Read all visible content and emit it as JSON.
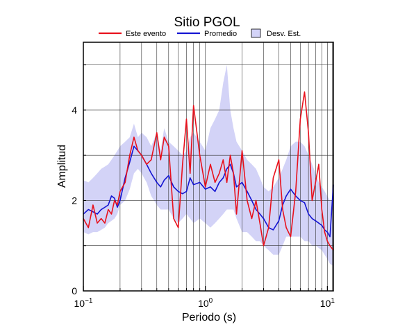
{
  "chart_data": {
    "type": "line",
    "title": "Sitio PGOL",
    "xlabel": "Periodo (s)",
    "ylabel": "Amplitud",
    "x_scale": "log",
    "xlim": [
      0.1,
      11.2
    ],
    "ylim": [
      0,
      5.5
    ],
    "grid": true,
    "legend_position": "top",
    "x_ticks": [
      {
        "value": 0.1,
        "base": "10",
        "exp": "−1"
      },
      {
        "value": 1,
        "base": "10",
        "exp": "0"
      },
      {
        "value": 10,
        "base": "10",
        "exp": "1"
      }
    ],
    "y_ticks": [
      0,
      2,
      4
    ],
    "legend": [
      {
        "label": "Este evento",
        "kind": "line",
        "color": "#e8111c"
      },
      {
        "label": "Promedio",
        "kind": "line",
        "color": "#1414d2"
      },
      {
        "label": "Desv. Est.",
        "kind": "band",
        "color": "#d3d3f7"
      }
    ],
    "x": [
      0.1,
      0.11,
      0.12,
      0.13,
      0.14,
      0.15,
      0.16,
      0.17,
      0.18,
      0.19,
      0.2,
      0.22,
      0.24,
      0.26,
      0.28,
      0.3,
      0.33,
      0.36,
      0.4,
      0.43,
      0.46,
      0.5,
      0.55,
      0.6,
      0.65,
      0.7,
      0.75,
      0.8,
      0.9,
      1.0,
      1.1,
      1.2,
      1.3,
      1.4,
      1.5,
      1.6,
      1.7,
      1.8,
      2.0,
      2.2,
      2.4,
      2.6,
      2.8,
      3.0,
      3.3,
      3.6,
      4.0,
      4.3,
      4.6,
      5.0,
      5.5,
      6.0,
      6.5,
      7.0,
      7.5,
      8.0,
      8.5,
      9.0,
      9.5,
      10.0,
      10.5,
      11.2
    ],
    "series": [
      {
        "name": "Este evento",
        "color": "#e8111c",
        "values": [
          1.6,
          1.4,
          1.9,
          1.5,
          1.6,
          1.5,
          1.8,
          1.7,
          2.0,
          1.9,
          2.2,
          2.4,
          3.0,
          3.4,
          3.1,
          3.0,
          2.8,
          2.9,
          3.5,
          2.9,
          3.4,
          3.2,
          1.6,
          1.4,
          2.8,
          3.8,
          2.6,
          4.1,
          3.0,
          2.3,
          2.8,
          2.4,
          2.6,
          2.9,
          2.4,
          3.0,
          2.6,
          1.7,
          3.1,
          2.0,
          1.6,
          2.0,
          1.5,
          1.0,
          1.4,
          2.5,
          2.9,
          1.8,
          1.4,
          1.2,
          2.2,
          3.8,
          4.4,
          3.5,
          2.0,
          2.4,
          2.8,
          1.8,
          1.3,
          1.1,
          1.0,
          0.9
        ]
      },
      {
        "name": "Promedio",
        "color": "#1414d2",
        "values": [
          1.7,
          1.8,
          1.75,
          1.7,
          1.8,
          1.85,
          1.9,
          2.1,
          2.05,
          1.85,
          2.0,
          2.5,
          2.85,
          3.2,
          3.1,
          3.0,
          2.8,
          2.6,
          2.4,
          2.3,
          2.45,
          2.55,
          2.3,
          2.2,
          2.15,
          2.2,
          2.5,
          2.35,
          2.4,
          2.25,
          2.3,
          2.2,
          2.4,
          2.5,
          2.7,
          2.8,
          2.6,
          2.3,
          2.4,
          2.2,
          2.0,
          1.8,
          1.7,
          1.6,
          1.4,
          1.35,
          1.55,
          1.9,
          2.1,
          2.25,
          2.1,
          2.0,
          1.95,
          1.7,
          1.6,
          1.55,
          1.5,
          1.45,
          1.35,
          1.3,
          1.2,
          2.35
        ]
      },
      {
        "name": "Desv. Est.",
        "kind": "band",
        "color": "#d3d3f7",
        "upper": [
          2.45,
          2.4,
          2.5,
          2.6,
          2.7,
          2.75,
          2.8,
          2.9,
          3.0,
          3.1,
          3.2,
          3.3,
          3.4,
          3.7,
          3.4,
          3.5,
          3.4,
          3.2,
          3.5,
          3.1,
          3.6,
          3.3,
          3.2,
          3.1,
          3.0,
          3.1,
          3.4,
          3.5,
          3.3,
          3.1,
          3.6,
          3.8,
          4.0,
          4.6,
          5.0,
          4.0,
          3.6,
          3.3,
          3.1,
          2.9,
          2.8,
          2.7,
          2.5,
          2.3,
          2.2,
          2.3,
          2.5,
          2.7,
          2.9,
          3.2,
          3.3,
          3.3,
          3.2,
          3.0,
          2.8,
          2.6,
          2.4,
          2.3,
          2.2,
          2.1,
          2.0,
          2.0
        ],
        "lower": [
          1.3,
          1.25,
          1.3,
          1.3,
          1.35,
          1.4,
          1.5,
          1.55,
          1.6,
          1.7,
          1.9,
          2.0,
          2.25,
          2.6,
          2.7,
          2.6,
          2.4,
          2.1,
          1.9,
          1.8,
          1.8,
          1.8,
          1.6,
          1.5,
          1.6,
          1.7,
          1.6,
          1.5,
          1.6,
          1.5,
          1.4,
          1.5,
          1.6,
          1.7,
          1.8,
          1.8,
          1.8,
          1.6,
          1.3,
          1.3,
          1.2,
          1.1,
          1.1,
          1.0,
          0.9,
          0.8,
          0.8,
          1.0,
          1.2,
          1.2,
          1.2,
          1.2,
          1.1,
          1.1,
          1.0,
          1.0,
          0.95,
          0.9,
          0.8,
          0.7,
          0.6,
          0.55
        ]
      }
    ]
  }
}
